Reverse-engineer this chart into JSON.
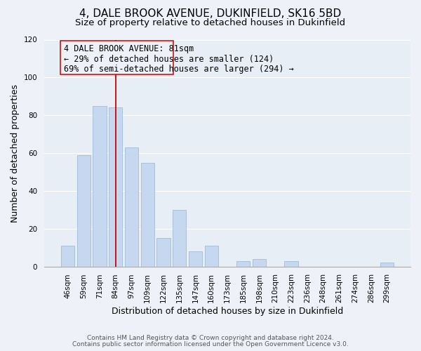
{
  "title": "4, DALE BROOK AVENUE, DUKINFIELD, SK16 5BD",
  "subtitle": "Size of property relative to detached houses in Dukinfield",
  "xlabel": "Distribution of detached houses by size in Dukinfield",
  "ylabel": "Number of detached properties",
  "bar_labels": [
    "46sqm",
    "59sqm",
    "71sqm",
    "84sqm",
    "97sqm",
    "109sqm",
    "122sqm",
    "135sqm",
    "147sqm",
    "160sqm",
    "173sqm",
    "185sqm",
    "198sqm",
    "210sqm",
    "223sqm",
    "236sqm",
    "248sqm",
    "261sqm",
    "274sqm",
    "286sqm",
    "299sqm"
  ],
  "bar_values": [
    11,
    59,
    85,
    84,
    63,
    55,
    15,
    30,
    8,
    11,
    0,
    3,
    4,
    0,
    3,
    0,
    0,
    0,
    0,
    0,
    2
  ],
  "bar_color": "#c5d8f0",
  "bar_edge_color": "#a0bcd8",
  "vline_x": 3,
  "vline_color": "#cc0000",
  "ylim": [
    0,
    120
  ],
  "ann_line1": "4 DALE BROOK AVENUE: 81sqm",
  "ann_line2": "← 29% of detached houses are smaller (124)",
  "ann_line3": "69% of semi-detached houses are larger (294) →",
  "footer_line1": "Contains HM Land Registry data © Crown copyright and database right 2024.",
  "footer_line2": "Contains public sector information licensed under the Open Government Licence v3.0.",
  "background_color": "#eef2f8",
  "bar_area_color": "#e8eef6",
  "title_fontsize": 11,
  "subtitle_fontsize": 9.5,
  "axis_label_fontsize": 9,
  "tick_fontsize": 7.5,
  "footer_fontsize": 6.5,
  "annotation_fontsize": 8.5
}
